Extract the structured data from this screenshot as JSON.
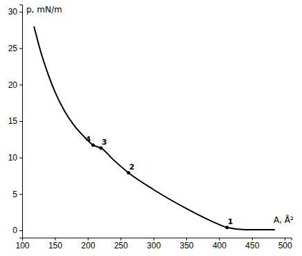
{
  "chart_data": {
    "type": "line",
    "x_label": "A, Å²",
    "y_label": "p, mN/m",
    "x": [
      118,
      130,
      140,
      150,
      165,
      180,
      195,
      208,
      220,
      240,
      262,
      300,
      350,
      390,
      412,
      440,
      485
    ],
    "values": [
      28,
      24,
      21.3,
      19,
      16.3,
      14.3,
      12.8,
      11.7,
      11.3,
      9.6,
      7.9,
      5.6,
      3.0,
      1.2,
      0.4,
      0.1,
      0.1
    ],
    "color": "#000000",
    "xlim": [
      100,
      510
    ],
    "xticks": [
      100,
      150,
      200,
      250,
      300,
      350,
      400,
      450,
      500
    ],
    "ylim": [
      -1,
      31
    ],
    "yticks": [
      0,
      5,
      10,
      15,
      20,
      25,
      30
    ],
    "grid": false,
    "annotations": [
      {
        "text": "1",
        "x": 412,
        "y": 0.4
      },
      {
        "text": "2",
        "x": 262,
        "y": 7.9
      },
      {
        "text": "3",
        "x": 220,
        "y": 11.3
      },
      {
        "text": "4",
        "x": 208,
        "y": 11.7
      }
    ]
  }
}
